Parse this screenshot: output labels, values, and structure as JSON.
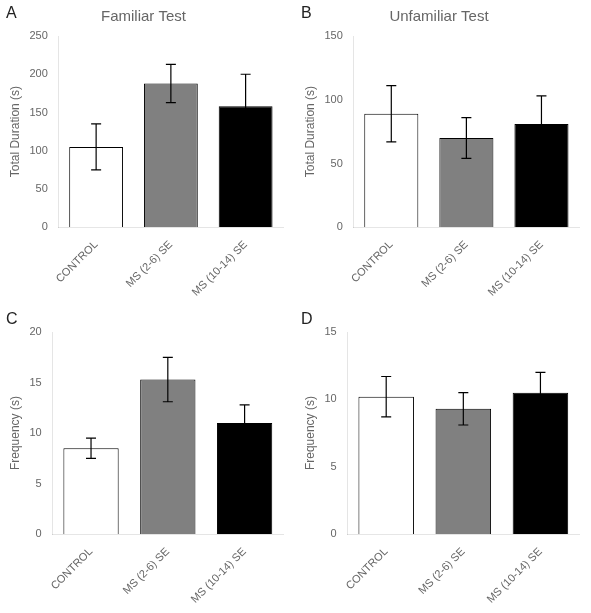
{
  "chart_data": [
    {
      "type": "bar",
      "title": "Familiar Test",
      "annotations": [
        "A"
      ],
      "categories": [
        "CONTROL",
        "MS (2-6) SE",
        "MS (10-14) SE"
      ],
      "values": [
        105,
        188,
        158
      ],
      "errors": [
        30,
        25,
        42
      ],
      "colors": [
        "white",
        "#808080",
        "black"
      ],
      "y_label": "Total Duration (s)",
      "ylim": [
        0,
        250
      ],
      "yticks": [
        0,
        50,
        100,
        150,
        200,
        250
      ],
      "grid": false
    },
    {
      "type": "bar",
      "title": "Unfamiliar Test",
      "annotations": [
        "B"
      ],
      "categories": [
        "CONTROL",
        "MS (2-6) SE",
        "MS (10-14) SE"
      ],
      "values": [
        89,
        70,
        81
      ],
      "errors": [
        22,
        16,
        22
      ],
      "colors": [
        "white",
        "#808080",
        "black"
      ],
      "y_label": "Total Duration (s)",
      "ylim": [
        0,
        150
      ],
      "yticks": [
        0,
        50,
        100,
        150
      ],
      "grid": false
    },
    {
      "type": "bar",
      "annotations": [
        "C"
      ],
      "categories": [
        "CONTROL",
        "MS (2-6) SE",
        "MS (10-14) SE"
      ],
      "values": [
        8.5,
        15.3,
        11.0
      ],
      "errors": [
        1.0,
        2.2,
        1.8
      ],
      "colors": [
        "white",
        "#808080",
        "black"
      ],
      "y_label": "Frequency (s)",
      "ylim": [
        0,
        20
      ],
      "yticks": [
        0,
        5,
        10,
        15,
        20
      ],
      "grid": false
    },
    {
      "type": "bar",
      "annotations": [
        "D"
      ],
      "categories": [
        "CONTROL",
        "MS (2-6) SE",
        "MS (10-14) SE"
      ],
      "values": [
        10.2,
        9.3,
        10.5
      ],
      "errors": [
        1.5,
        1.2,
        1.5
      ],
      "colors": [
        "white",
        "#808080",
        "black"
      ],
      "y_label": "Frequency (s)",
      "ylim": [
        0,
        15
      ],
      "yticks": [
        0,
        5,
        10,
        15
      ],
      "grid": false
    }
  ]
}
